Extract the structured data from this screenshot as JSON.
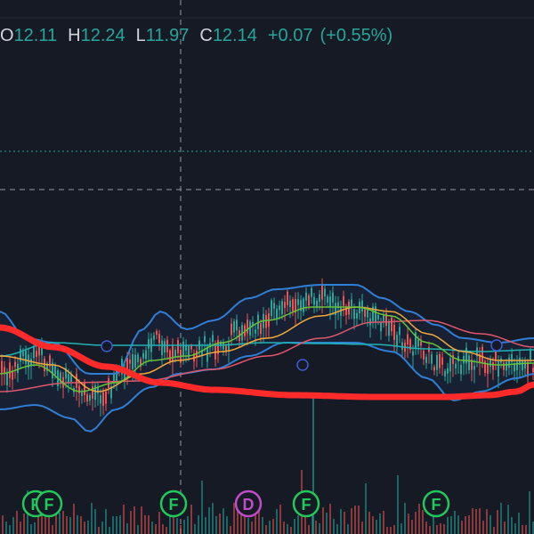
{
  "legend": {
    "open_label": "O",
    "open_value": "12.11",
    "high_label": "H",
    "high_value": "12.24",
    "low_label": "L",
    "low_value": "11.97",
    "close_label": "C",
    "close_value": "12.14",
    "change": "+0.07",
    "change_pct": "(+0.55%)"
  },
  "colors": {
    "background": "#161a25",
    "up": "#26a69a",
    "down": "#ef5350",
    "bollinger": "#2f7fd6",
    "ma_red": "#ff2a2a",
    "ma_teal": "#1fb3b3",
    "ma_orange": "#f2a93b",
    "ma_green": "#67c23a",
    "marker_earnings": "#1fc95a",
    "marker_dividend": "#c04cc9"
  },
  "event_markers": [
    {
      "letter": "F",
      "type": "earnings"
    },
    {
      "letter": "F",
      "type": "earnings"
    },
    {
      "letter": "F",
      "type": "earnings"
    },
    {
      "letter": "D",
      "type": "dividend"
    },
    {
      "letter": "F",
      "type": "earnings"
    },
    {
      "letter": "F",
      "type": "earnings"
    }
  ]
}
